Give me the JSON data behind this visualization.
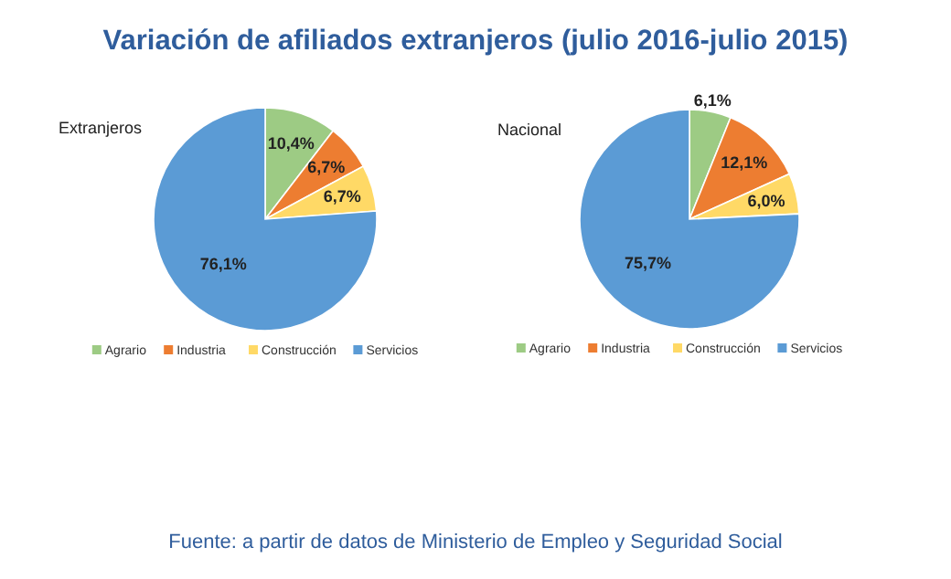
{
  "chart_data": [
    {
      "type": "pie",
      "title": "Variación de afiliados extranjeros (julio 2016-julio 2015)",
      "subtitle": "Extranjeros",
      "categories": [
        "Agrario",
        "Industria",
        "Construcción",
        "Servicios"
      ],
      "values": [
        10.4,
        6.7,
        6.7,
        76.1
      ],
      "value_labels": [
        "10,4%",
        "6,7%",
        "6,7%",
        "76,1%"
      ],
      "colors": [
        "#9dcb84",
        "#ed7d31",
        "#ffd966",
        "#5b9bd5"
      ],
      "legend": "bottom"
    },
    {
      "type": "pie",
      "subtitle": "Nacional",
      "categories": [
        "Agrario",
        "Industria",
        "Construcción",
        "Servicios"
      ],
      "values": [
        6.1,
        12.1,
        6.0,
        75.7
      ],
      "value_labels": [
        "6,1%",
        "12,1%",
        "6,0%",
        "75,7%"
      ],
      "colors": [
        "#9dcb84",
        "#ed7d31",
        "#ffd966",
        "#5b9bd5"
      ],
      "legend": "bottom",
      "annotations": [
        "Fuente: a partir de datos de Ministerio de Empleo y Seguridad Social"
      ]
    }
  ]
}
